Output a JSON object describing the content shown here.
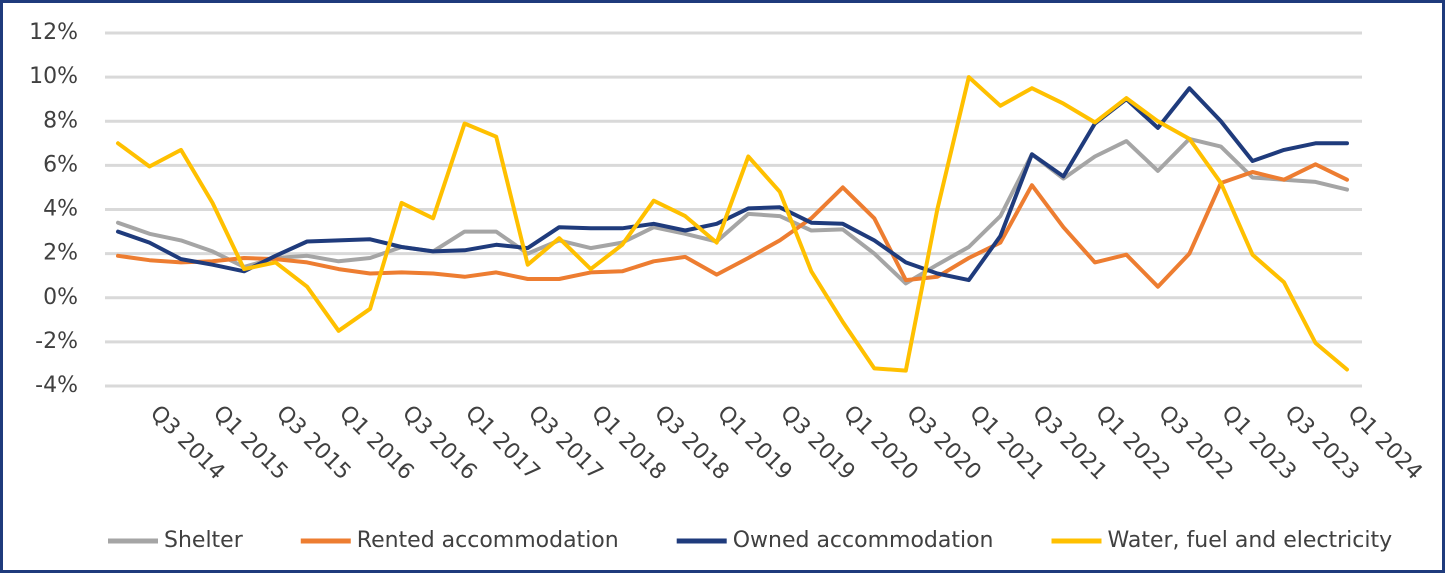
{
  "chart_data": {
    "type": "line",
    "categories": [
      null,
      "Q3 2014",
      null,
      "Q1 2015",
      null,
      "Q3 2015",
      null,
      "Q1 2016",
      null,
      "Q3 2016",
      null,
      "Q1 2017",
      null,
      "Q3 2017",
      null,
      "Q1 2018",
      null,
      "Q3 2018",
      null,
      "Q1 2019",
      null,
      "Q3 2019",
      null,
      "Q1 2020",
      null,
      "Q3 2020",
      null,
      "Q1 2021",
      null,
      "Q3 2021",
      null,
      "Q1 2022",
      null,
      "Q3 2022",
      null,
      "Q1 2023",
      null,
      "Q3 2023",
      null,
      "Q1 2024"
    ],
    "series": [
      {
        "name": "Shelter",
        "color": "#a5a5a5",
        "values": [
          3.4,
          2.9,
          2.6,
          2.1,
          1.4,
          1.8,
          1.9,
          1.65,
          1.8,
          2.3,
          2.1,
          3.0,
          3.0,
          2.0,
          2.6,
          2.25,
          2.5,
          3.2,
          2.9,
          2.55,
          3.8,
          3.7,
          3.05,
          3.1,
          2.0,
          0.65,
          1.5,
          2.3,
          3.7,
          6.5,
          5.4,
          6.4,
          7.1,
          5.75,
          7.2,
          6.85,
          5.45,
          5.35,
          5.25,
          4.9
        ]
      },
      {
        "name": "Rented accommodation",
        "color": "#ed7d31",
        "values": [
          1.9,
          1.7,
          1.6,
          1.65,
          1.8,
          1.75,
          1.6,
          1.3,
          1.1,
          1.15,
          1.1,
          0.95,
          1.15,
          0.85,
          0.85,
          1.15,
          1.2,
          1.65,
          1.85,
          1.05,
          1.8,
          2.6,
          3.6,
          5.0,
          3.6,
          0.8,
          0.95,
          1.8,
          2.5,
          5.1,
          3.2,
          1.6,
          1.95,
          0.5,
          2.0,
          5.2,
          5.7,
          5.35,
          6.05,
          5.35
        ]
      },
      {
        "name": "Owned accommodation",
        "color": "#1f3b7c",
        "values": [
          3.0,
          2.5,
          1.75,
          1.5,
          1.2,
          1.9,
          2.55,
          2.6,
          2.65,
          2.3,
          2.1,
          2.15,
          2.4,
          2.25,
          3.2,
          3.15,
          3.15,
          3.35,
          3.05,
          3.35,
          4.05,
          4.1,
          3.4,
          3.35,
          2.6,
          1.6,
          1.1,
          0.8,
          2.8,
          6.5,
          5.5,
          7.9,
          9.0,
          7.7,
          9.5,
          8.0,
          6.2,
          6.7,
          7.0,
          7.0
        ]
      },
      {
        "name": "Water, fuel and electricity",
        "color": "#ffc000",
        "values": [
          7.0,
          5.95,
          6.7,
          4.3,
          1.3,
          1.6,
          0.5,
          -1.5,
          -0.5,
          4.3,
          3.6,
          7.9,
          7.3,
          1.5,
          2.7,
          1.3,
          2.4,
          4.4,
          3.7,
          2.5,
          6.4,
          4.8,
          1.2,
          -1.1,
          -3.2,
          -3.3,
          4.0,
          10.0,
          8.7,
          9.5,
          8.8,
          7.95,
          9.05,
          8.0,
          7.2,
          5.2,
          1.95,
          0.7,
          -2.05,
          -3.25
        ]
      }
    ],
    "ylim": [
      -4,
      12
    ],
    "yticks": [
      {
        "value": -4,
        "label": "-4%"
      },
      {
        "value": -2,
        "label": "-2%"
      },
      {
        "value": 0,
        "label": "0%"
      },
      {
        "value": 2,
        "label": "2%"
      },
      {
        "value": 4,
        "label": "4%"
      },
      {
        "value": 6,
        "label": "6%"
      },
      {
        "value": 8,
        "label": "8%"
      },
      {
        "value": 10,
        "label": "10%"
      },
      {
        "value": 12,
        "label": "12%"
      }
    ],
    "grid": true,
    "legend": "bottom"
  }
}
